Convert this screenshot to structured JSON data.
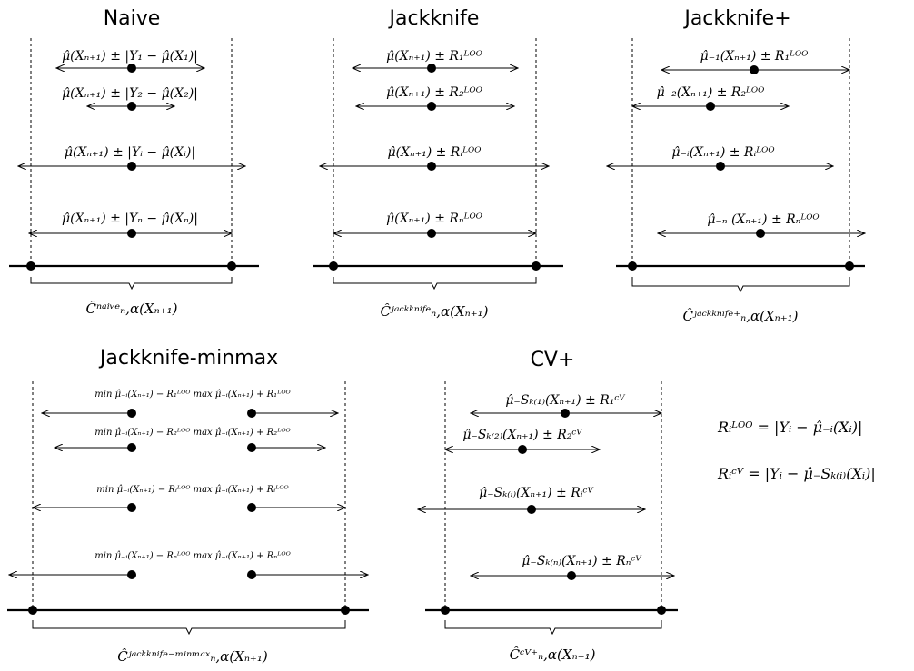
{
  "panels": [
    {
      "title": "Naive",
      "bottom_label": "Ĉ_{n,α}^{naive}(X_{n+1})",
      "bottom_label_display": "Ĉⁿᵃⁱᵛᵉₙ,α(Xₙ₊₁)",
      "rows": [
        "μ̂(Xₙ₊₁) ± |Y₁ − μ̂(X₁)|",
        "μ̂(Xₙ₊₁) ± |Y₂ − μ̂(X₂)|",
        "μ̂(Xₙ₊₁) ± |Yᵢ − μ̂(Xᵢ)|",
        "μ̂(Xₙ₊₁) ± |Yₙ − μ̂(Xₙ)|"
      ]
    },
    {
      "title": "Jackknife",
      "bottom_label_display": "Ĉʲᵃᶜᵏᵏⁿⁱᶠᵉₙ,α(Xₙ₊₁)",
      "rows": [
        "μ̂(Xₙ₊₁) ± R₁ᴸᴼᴼ",
        "μ̂(Xₙ₊₁) ± R₂ᴸᴼᴼ",
        "μ̂(Xₙ₊₁) ± Rᵢᴸᴼᴼ",
        "μ̂(Xₙ₊₁) ± Rₙᴸᴼᴼ"
      ]
    },
    {
      "title": "Jackknife+",
      "bottom_label_display": "Ĉʲᵃᶜᵏᵏⁿⁱᶠᵉ⁺ₙ,α(Xₙ₊₁)",
      "rows": [
        "μ̂₋₁(Xₙ₊₁) ± R₁ᴸᴼᴼ",
        "μ̂₋₂(Xₙ₊₁) ± R₂ᴸᴼᴼ",
        "μ̂₋ᵢ(Xₙ₊₁) ± Rᵢᴸᴼᴼ",
        "μ̂₋ₙ (Xₙ₊₁) ± Rₙᴸᴼᴼ"
      ]
    },
    {
      "title": "Jackknife-minmax",
      "bottom_label_display": "Ĉʲᵃᶜᵏᵏⁿⁱᶠᵉ⁻ᵐⁱⁿᵐᵃˣₙ,α(Xₙ₊₁)",
      "rows": [
        "min μ̂₋ᵢ(Xₙ₊₁) − R₁ᴸᴼᴼ   max μ̂₋ᵢ(Xₙ₊₁) + R₁ᴸᴼᴼ",
        "min μ̂₋ᵢ(Xₙ₊₁) − R₂ᴸᴼᴼ   max μ̂₋ᵢ(Xₙ₊₁) + R₂ᴸᴼᴼ",
        "min μ̂₋ᵢ(Xₙ₊₁) − Rᵢᴸᴼᴼ   max μ̂₋ᵢ(Xₙ₊₁) + Rᵢᴸᴼᴼ",
        "min μ̂₋ᵢ(Xₙ₊₁) − Rₙᴸᴼᴼ   max μ̂₋ᵢ(Xₙ₊₁) + Rₙᴸᴼᴼ"
      ]
    },
    {
      "title": "CV+",
      "bottom_label_display": "Ĉᶜⱽ⁺ₙ,α(Xₙ₊₁)",
      "rows": [
        "μ̂₋Sₖ₍₁₎(Xₙ₊₁) ± R₁ᶜⱽ",
        "μ̂₋Sₖ₍₂₎(Xₙ₊₁) ± R₂ᶜⱽ",
        "μ̂₋Sₖ₍ᵢ₎(Xₙ₊₁) ± Rᵢᶜⱽ",
        "μ̂₋Sₖ₍ₙ₎(Xₙ₊₁) ± Rₙᶜⱽ"
      ]
    }
  ],
  "definitions": [
    "Rᵢᴸᴼᴼ = |Yᵢ − μ̂₋ᵢ(Xᵢ)|",
    "Rᵢᶜⱽ = |Yᵢ − μ̂₋Sₖ₍ᵢ₎(Xᵢ)|"
  ]
}
